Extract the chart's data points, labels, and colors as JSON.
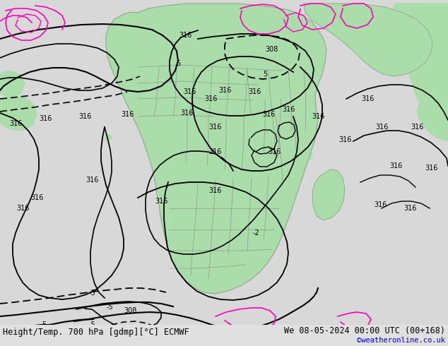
{
  "title_left": "Height/Temp. 700 hPa [gdmp][°C] ECMWF",
  "title_right": "We 08-05-2024 00:00 UTC (00+168)",
  "credit": "©weatheronline.co.uk",
  "bg_color": "#d8d8d8",
  "land_green_color": "#aaddaa",
  "ocean_color": "#d8d8d8",
  "contour_black": "#000000",
  "contour_magenta": "#ff00bb",
  "contour_gray": "#888888",
  "font_size_title": 8.5,
  "font_size_credit": 7.5,
  "font_size_label": 7
}
